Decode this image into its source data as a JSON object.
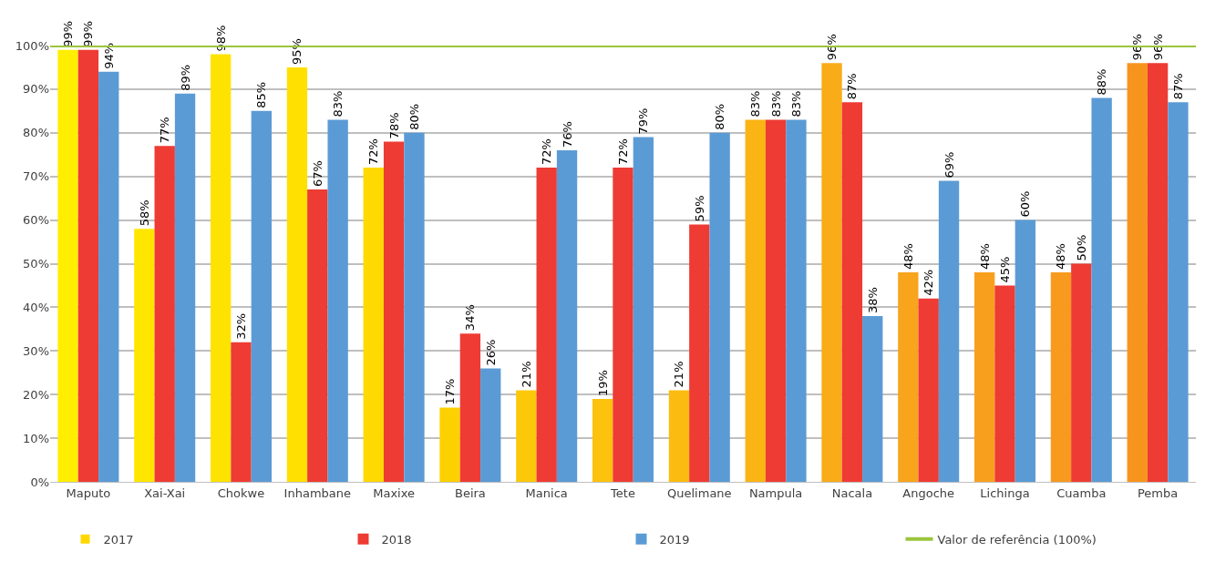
{
  "chart_data": {
    "type": "bar",
    "categories": [
      "Maputo",
      "Xai-Xai",
      "Chokwe",
      "Inhambane",
      "Maxixe",
      "Beira",
      "Manica",
      "Tete",
      "Quelimane",
      "Nampula",
      "Nacala",
      "Angoche",
      "Lichinga",
      "Cuamba",
      "Pemba"
    ],
    "series": [
      {
        "name": "2017",
        "color": "#ffd700",
        "colors": [
          "#ffee00",
          "#ffe600",
          "#ffe300",
          "#ffe000",
          "#ffd900",
          "#fdd000",
          "#fcc90a",
          "#fcc20e",
          "#fbbb10",
          "#fab414",
          "#f9ac18",
          "#f8a41c",
          "#f8a01e",
          "#f79a1e",
          "#f7941d"
        ],
        "values": [
          99,
          58,
          98,
          95,
          72,
          17,
          21,
          19,
          21,
          83,
          96,
          48,
          48,
          48,
          96
        ],
        "value_labels": [
          "99%",
          "58%",
          "98%",
          "95%",
          "72%",
          "17%",
          "21%",
          "19%",
          "21%",
          "83%",
          "96%",
          "48%",
          "48%",
          "48%",
          "96%"
        ]
      },
      {
        "name": "2018",
        "color": "#ee3b33",
        "values": [
          99,
          77,
          32,
          67,
          78,
          34,
          72,
          72,
          59,
          83,
          87,
          42,
          45,
          50,
          96
        ],
        "value_labels": [
          "99%",
          "77%",
          "32%",
          "67%",
          "78%",
          "34%",
          "72%",
          "72%",
          "59%",
          "83%",
          "87%",
          "42%",
          "45%",
          "50%",
          "96%"
        ]
      },
      {
        "name": "2019",
        "color": "#5b9bd5",
        "values": [
          94,
          89,
          85,
          83,
          80,
          26,
          76,
          79,
          80,
          83,
          38,
          69,
          60,
          88,
          87
        ],
        "value_labels": [
          "94%",
          "89%",
          "85%",
          "83%",
          "80%",
          "26%",
          "76%",
          "79%",
          "80%",
          "83%",
          "38%",
          "69%",
          "60%",
          "88%",
          "87%"
        ]
      }
    ],
    "ylim": [
      0,
      100
    ],
    "yticks": [
      {
        "value": 0,
        "label": "0%"
      },
      {
        "value": 10,
        "label": "10%"
      },
      {
        "value": 20,
        "label": "20%"
      },
      {
        "value": 30,
        "label": "30%"
      },
      {
        "value": 40,
        "label": "40%"
      },
      {
        "value": 50,
        "label": "50%"
      },
      {
        "value": 60,
        "label": "60%"
      },
      {
        "value": 70,
        "label": "70%"
      },
      {
        "value": 80,
        "label": "80%"
      },
      {
        "value": 90,
        "label": "90%"
      },
      {
        "value": 100,
        "label": "100%"
      }
    ],
    "ref_lines": [
      {
        "axis": "y",
        "value": 100,
        "label": "Valor de referência (100%)",
        "color": "#9bc53d"
      }
    ],
    "grid": "y",
    "legend": "bottom"
  }
}
